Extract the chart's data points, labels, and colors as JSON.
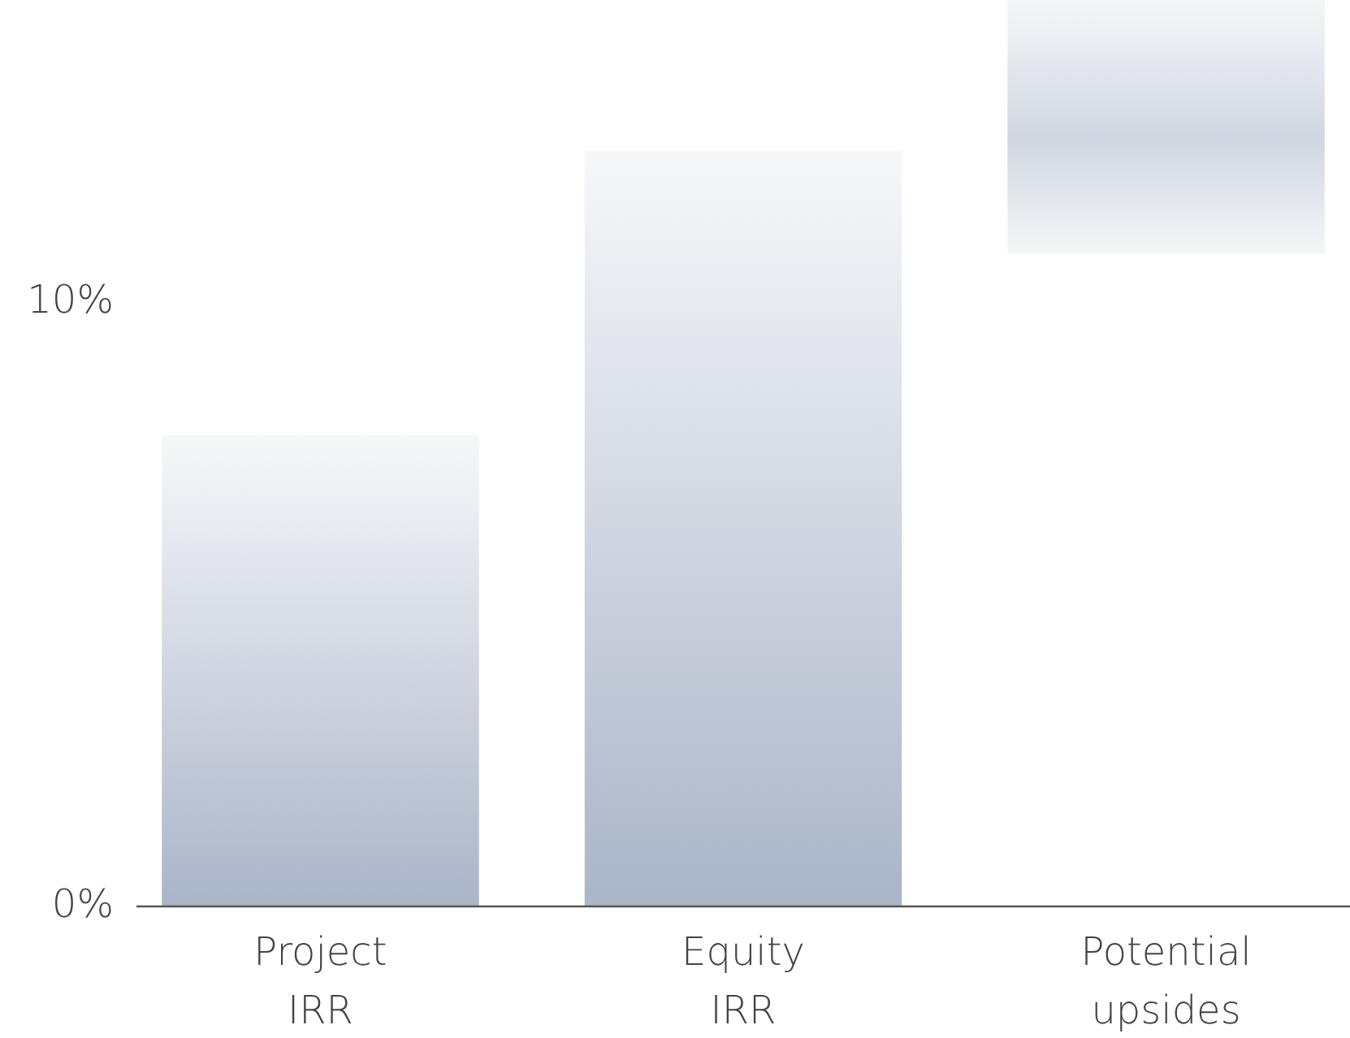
{
  "chart_data": {
    "type": "bar",
    "categories": [
      "Project IRR",
      "Equity IRR",
      "Potential upsides"
    ],
    "values": [
      7.8,
      12.5,
      4.2
    ],
    "base": [
      0,
      0,
      10.8
    ],
    "color": "#aab5c8",
    "ylim": [
      0,
      15
    ],
    "yticks": [
      {
        "value": 0,
        "label": "0%"
      },
      {
        "value": 10,
        "label": "10%"
      }
    ],
    "grid": false
  }
}
